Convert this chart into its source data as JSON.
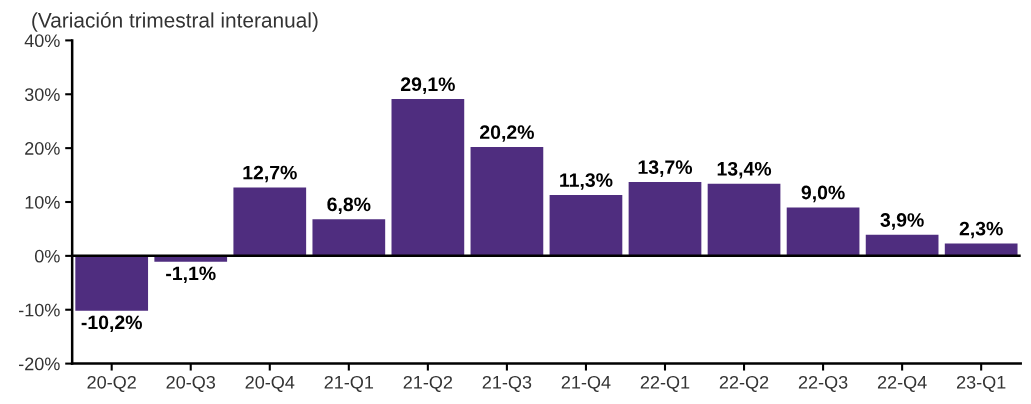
{
  "chart_data": {
    "type": "bar",
    "subtitle": "(Variación trimestral interanual)",
    "categories": [
      "20-Q2",
      "20-Q3",
      "20-Q4",
      "21-Q1",
      "21-Q2",
      "21-Q3",
      "21-Q4",
      "22-Q1",
      "22-Q2",
      "22-Q3",
      "22-Q4",
      "23-Q1"
    ],
    "values": [
      -10.2,
      -1.1,
      12.7,
      6.8,
      29.1,
      20.2,
      11.3,
      13.7,
      13.4,
      9.0,
      3.9,
      2.3
    ],
    "value_labels": [
      "-10,2%",
      "-1,1%",
      "12,7%",
      "6,8%",
      "29,1%",
      "20,2%",
      "11,3%",
      "13,7%",
      "13,4%",
      "9,0%",
      "3,9%",
      "2,3%"
    ],
    "color": "#4f2d7f",
    "ylim": [
      -20,
      40
    ],
    "yticks": [
      {
        "value": -20,
        "label": "-20%"
      },
      {
        "value": -10,
        "label": "-10%"
      },
      {
        "value": 0,
        "label": "0%"
      },
      {
        "value": 10,
        "label": "10%"
      },
      {
        "value": 20,
        "label": "20%"
      },
      {
        "value": 30,
        "label": "30%"
      },
      {
        "value": 40,
        "label": "40%"
      }
    ],
    "ref_lines": [
      {
        "axis": "y",
        "value": 0,
        "color": "#000000"
      }
    ],
    "grid": false,
    "legend": false
  }
}
